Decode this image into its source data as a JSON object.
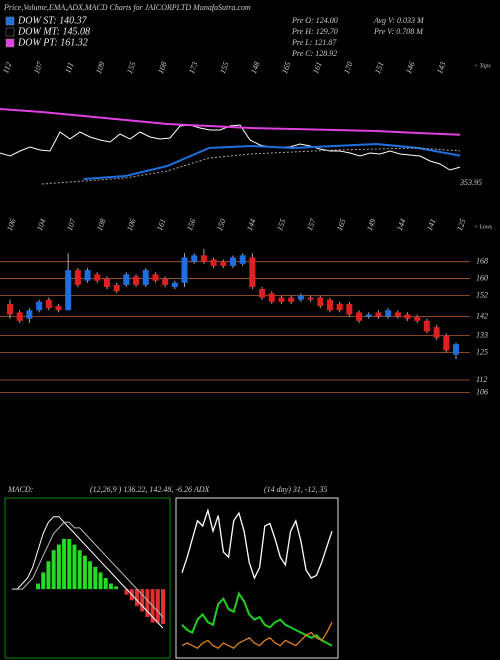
{
  "header": {
    "title": "Price,Volume,EMA,ADX,MACD Charts for JAICORPLTD MunafaSutra.com",
    "info": [
      "Pre  O: 124.00",
      "Pre  H: 129.70",
      "Pre  L: 121.87",
      "Pre  C: 128.92",
      "Avg V: 0.033 M",
      "Pre  V: 0.708 M"
    ]
  },
  "chart_data": [
    {
      "type": "line",
      "label_right": "353.95",
      "tops_label": "< Tops",
      "top_labels": [
        "112",
        "107",
        "111",
        "109",
        "155",
        "168",
        "173",
        "155",
        "148",
        "165",
        "161",
        "170",
        "151",
        "146",
        "143"
      ],
      "ylim": [
        96,
        216
      ],
      "series": [
        {
          "name": "DOW ST: 140.37",
          "color": "#1e6fe0",
          "values": [
            null,
            null,
            117,
            120,
            130,
            148,
            150,
            148,
            150,
            152,
            148,
            140.37
          ]
        },
        {
          "name": "DOW MT: 145.08",
          "color": "#000000",
          "line_color": "#aaaaaa",
          "values": [
            null,
            112,
            115,
            118,
            125,
            138,
            142,
            144,
            146,
            147,
            148,
            145.08
          ]
        },
        {
          "name": "DOW PT: 161.32",
          "color": "#e040e0",
          "values": [
            187,
            184,
            180,
            176,
            172,
            170,
            168,
            167,
            166,
            165,
            163,
            161.32
          ]
        }
      ]
    },
    {
      "type": "candlestick",
      "lows_label": "< Lows",
      "low_labels": [
        "106",
        "104",
        "107",
        "108",
        "106",
        "161",
        "156",
        "150",
        "144",
        "155",
        "157",
        "165",
        "149",
        "144",
        "141",
        "125"
      ],
      "ylim": [
        103,
        174
      ],
      "yticks": [
        168,
        160,
        152,
        142,
        133,
        125,
        112,
        106
      ],
      "grid": true,
      "up_color": "#1e6fe0",
      "down_color": "#e02020",
      "open": [
        148,
        144,
        141,
        145,
        150,
        147,
        145,
        164,
        159,
        162,
        160,
        157,
        157,
        161,
        157,
        162,
        160,
        156,
        158,
        168,
        171,
        169,
        168,
        166,
        167,
        170,
        155,
        153,
        151,
        151,
        150,
        151,
        151,
        150,
        148,
        148,
        144,
        142,
        144,
        142,
        144,
        143,
        142,
        140,
        137,
        133,
        124
      ],
      "high": [
        150,
        145,
        146,
        150,
        151,
        148,
        172,
        165,
        165,
        163,
        161,
        158,
        163,
        162,
        165,
        163,
        161,
        159,
        172,
        172,
        174,
        170,
        169,
        171,
        172,
        172,
        156,
        154,
        152,
        152,
        153,
        152,
        152,
        151,
        149,
        149,
        145,
        144,
        145,
        146,
        145,
        144,
        143,
        141,
        138,
        134,
        129.7
      ],
      "low": [
        141,
        139,
        139,
        144,
        145,
        144,
        145,
        156,
        158,
        158,
        155,
        153,
        156,
        156,
        156,
        158,
        156,
        155,
        156,
        167,
        167,
        165,
        165,
        165,
        166,
        155,
        150,
        148,
        148,
        148,
        149,
        149,
        146,
        144,
        144,
        142,
        139,
        141,
        141,
        141,
        141,
        140,
        139,
        134,
        131,
        125,
        121.87
      ],
      "close": [
        143,
        140,
        145,
        149,
        146,
        145,
        164,
        157,
        164,
        159,
        156,
        154,
        162,
        157,
        164,
        159,
        157,
        158,
        170,
        171,
        168,
        166,
        166,
        170,
        171,
        156,
        151,
        149,
        149,
        149,
        152,
        150,
        147,
        145,
        145,
        143,
        140,
        143,
        142,
        145,
        142,
        141,
        140,
        135,
        132,
        126,
        128.92
      ]
    },
    {
      "type": "macd",
      "label": "MACD:",
      "params": "(12,26,9 ) 136.22, 142.48, -6.26  ADX",
      "ylim": [
        -12,
        16
      ],
      "histogram": [
        0,
        0,
        0,
        0,
        0,
        1,
        3,
        5,
        7,
        8,
        9,
        9,
        8,
        7,
        6,
        5,
        4,
        3,
        2,
        1,
        0.5,
        0,
        -1,
        -2,
        -3,
        -4,
        -5,
        -6,
        -6,
        -6.26
      ],
      "series": [
        {
          "color": "#ffffff",
          "values": [
            0,
            0,
            1,
            2,
            4,
            7,
            10,
            12,
            13,
            13,
            12,
            11,
            10,
            9,
            8,
            7,
            6,
            5,
            4,
            3,
            2,
            1,
            0,
            -1,
            -2,
            -3,
            -4,
            -5,
            -6,
            -7
          ]
        },
        {
          "color": "#bbbbbb",
          "values": [
            0,
            0,
            0,
            1,
            2,
            4,
            6,
            8,
            10,
            11,
            12,
            12,
            11,
            11,
            10,
            9,
            8,
            7,
            6,
            5,
            4,
            3,
            2,
            1,
            0,
            -1,
            -2,
            -3,
            -4,
            -5
          ]
        }
      ]
    },
    {
      "type": "adx",
      "label": "(14 day) 31, -12, 35",
      "ylim": [
        0,
        60
      ],
      "series": [
        {
          "color": "#ffffff",
          "values": [
            32,
            38,
            45,
            52,
            50,
            56,
            48,
            54,
            40,
            38,
            52,
            55,
            48,
            36,
            30,
            34,
            50,
            51,
            45,
            38,
            35,
            48,
            52,
            44,
            33,
            30,
            31,
            36,
            42,
            48
          ]
        },
        {
          "color": "#22cc22",
          "values": [
            12,
            10,
            9,
            14,
            16,
            13,
            12,
            20,
            22,
            18,
            17,
            24,
            21,
            16,
            14,
            15,
            12,
            11,
            13,
            14,
            12,
            11,
            10,
            9,
            8,
            7,
            8,
            6,
            5,
            4
          ]
        },
        {
          "color": "#e08020",
          "values": [
            4,
            5,
            4,
            3,
            5,
            6,
            4,
            3,
            5,
            4,
            3,
            5,
            6,
            7,
            5,
            4,
            6,
            7,
            5,
            4,
            6,
            5,
            4,
            6,
            8,
            9,
            7,
            6,
            9,
            13
          ]
        }
      ]
    }
  ]
}
